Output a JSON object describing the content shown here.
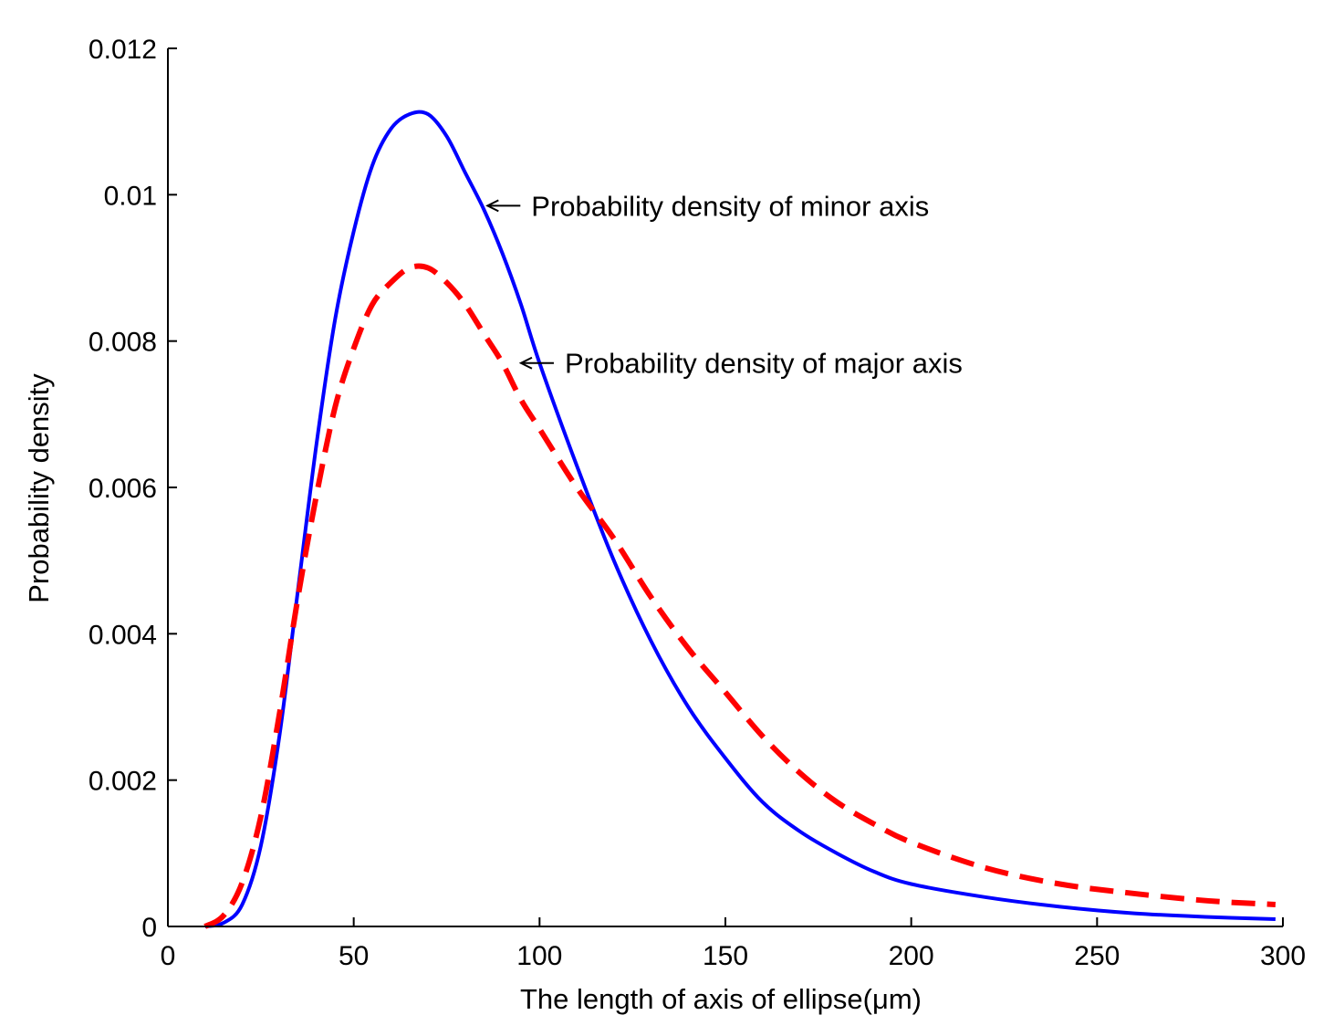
{
  "chart_data": {
    "type": "line",
    "title": "",
    "xlabel": "The length of axis of ellipse(μm)",
    "ylabel": "Probability density",
    "xlim": [
      0,
      300
    ],
    "ylim": [
      0,
      0.012
    ],
    "grid": false,
    "x_ticks": [
      0,
      50,
      100,
      150,
      200,
      250,
      300
    ],
    "x_tick_labels": [
      "0",
      "50",
      "100",
      "150",
      "200",
      "250",
      "300"
    ],
    "y_ticks": [
      0,
      0.002,
      0.004,
      0.006,
      0.008,
      0.01,
      0.012
    ],
    "y_tick_labels": [
      "0",
      "0.002",
      "0.004",
      "0.006",
      "0.008",
      "0.01",
      "0.012"
    ],
    "series": [
      {
        "name": "Probability density of minor axis",
        "color": "#0000ff",
        "style": "solid",
        "x": [
          10,
          15,
          20,
          25,
          30,
          35,
          40,
          45,
          50,
          55,
          60,
          65,
          70,
          75,
          80,
          85,
          90,
          95,
          100,
          110,
          120,
          130,
          140,
          150,
          160,
          170,
          180,
          190,
          200,
          220,
          240,
          260,
          280,
          298
        ],
        "y": [
          0.0,
          5e-05,
          0.0003,
          0.0011,
          0.0026,
          0.0046,
          0.0066,
          0.0083,
          0.0095,
          0.0104,
          0.0109,
          0.0111,
          0.0111,
          0.0108,
          0.0103,
          0.0098,
          0.0092,
          0.0085,
          0.0077,
          0.0063,
          0.005,
          0.0039,
          0.003,
          0.0023,
          0.0017,
          0.0013,
          0.001,
          0.00075,
          0.00058,
          0.0004,
          0.00027,
          0.00018,
          0.00013,
          0.0001
        ]
      },
      {
        "name": "Probability density of major axis",
        "color": "#ff0000",
        "style": "dashed",
        "x": [
          10,
          15,
          20,
          25,
          30,
          35,
          40,
          45,
          50,
          55,
          60,
          65,
          70,
          75,
          80,
          85,
          90,
          95,
          100,
          110,
          120,
          130,
          140,
          150,
          160,
          170,
          180,
          190,
          200,
          220,
          240,
          260,
          280,
          298
        ],
        "y": [
          0.0,
          0.00015,
          0.0006,
          0.0015,
          0.0029,
          0.0045,
          0.0059,
          0.0071,
          0.0079,
          0.0085,
          0.0088,
          0.009,
          0.009,
          0.0088,
          0.0085,
          0.0081,
          0.0077,
          0.0072,
          0.0068,
          0.006,
          0.0053,
          0.0045,
          0.0038,
          0.0032,
          0.0026,
          0.0021,
          0.0017,
          0.0014,
          0.00115,
          0.0008,
          0.00058,
          0.00045,
          0.00035,
          0.0003
        ]
      }
    ],
    "annotations": [
      {
        "text": "Probability density of minor axis",
        "series": 0,
        "point_x": 86,
        "point_y": 0.00985
      },
      {
        "text": "Probability density of major axis",
        "series": 1,
        "point_x": 95,
        "point_y": 0.0077
      }
    ]
  }
}
